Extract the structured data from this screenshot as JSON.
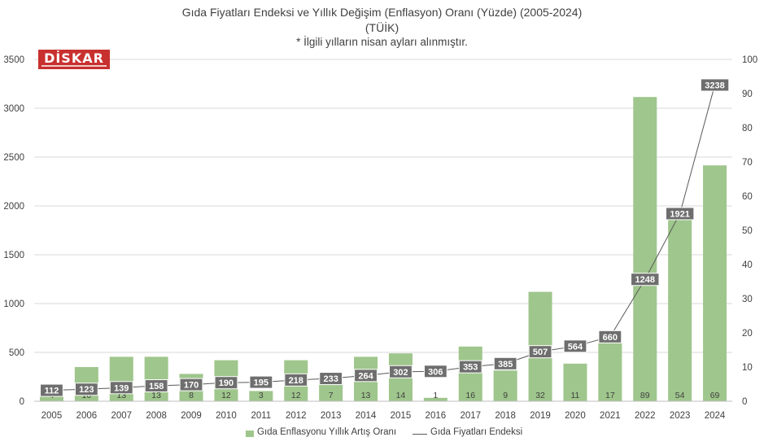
{
  "title": "Gıda Fiyatları Endeksi ve Yıllık Değişim (Enflasyon) Oranı (Yüzde) (2005-2024)",
  "subtitle": "(TÜİK)",
  "note": "* İlgili yılların nisan ayları alınmıştır.",
  "logo": "DİSKAR",
  "colors": {
    "bar": "#9fc68c",
    "line": "#595959",
    "label_bg": "#6e6e6e",
    "grid": "#d9d9d9",
    "text": "#404040",
    "logo": "#c8312f"
  },
  "chart_data": {
    "type": "bar",
    "categories": [
      "2005",
      "2006",
      "2007",
      "2008",
      "2009",
      "2010",
      "2011",
      "2012",
      "2013",
      "2014",
      "2015",
      "2016",
      "2017",
      "2018",
      "2019",
      "2020",
      "2021",
      "2022",
      "2023",
      "2024"
    ],
    "series": [
      {
        "name": "Gıda Enflasyonu Yıllık Artış Oranı",
        "chart_type": "bar",
        "axis": "right",
        "values": [
          4,
          10,
          13,
          13,
          8,
          12,
          3,
          12,
          7,
          13,
          14,
          1,
          16,
          9,
          32,
          11,
          17,
          89,
          54,
          69
        ]
      },
      {
        "name": "Gıda Fiyatları Endeksi",
        "chart_type": "line",
        "axis": "left",
        "values": [
          112,
          123,
          139,
          158,
          170,
          190,
          195,
          218,
          233,
          264,
          302,
          306,
          353,
          385,
          507,
          564,
          660,
          1248,
          1921,
          3238
        ]
      }
    ],
    "y_left": {
      "min": 0,
      "max": 3500,
      "ticks": [
        "0",
        "500",
        "1000",
        "1500",
        "2000",
        "2500",
        "3000",
        "3500"
      ]
    },
    "y_right": {
      "min": 0,
      "max": 100,
      "ticks": [
        "0",
        "10",
        "20",
        "30",
        "40",
        "50",
        "60",
        "70",
        "80",
        "90",
        "100"
      ]
    },
    "grid": true,
    "legend_position": "bottom"
  }
}
